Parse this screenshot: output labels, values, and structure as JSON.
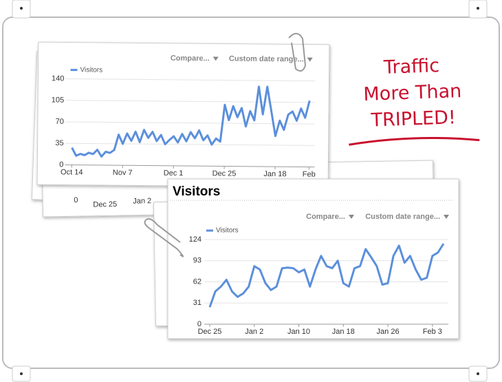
{
  "annotation": [
    "Traffic",
    "More Than",
    "TRIPLED!"
  ],
  "behind_labels": [
    "0",
    "Dec 25",
    "Jan 2"
  ],
  "chart_data": [
    {
      "type": "line",
      "controls": [
        "Compare...",
        "Custom date range..."
      ],
      "legend": "top-left",
      "categories": [
        "Oct 14",
        null,
        null,
        null,
        null,
        null,
        null,
        null,
        null,
        null,
        null,
        null,
        "Nov 7",
        null,
        null,
        null,
        null,
        null,
        null,
        null,
        null,
        null,
        null,
        null,
        "Dec 1",
        null,
        null,
        null,
        null,
        null,
        null,
        null,
        null,
        null,
        null,
        null,
        "Dec 25",
        null,
        null,
        null,
        null,
        null,
        null,
        null,
        null,
        null,
        null,
        null,
        "Jan 18",
        null,
        null,
        null,
        null,
        null,
        null,
        null,
        "Feb"
      ],
      "series": [
        {
          "name": "Visitors",
          "color": "#5b8fdb",
          "values": [
            28,
            15,
            18,
            16,
            20,
            18,
            25,
            14,
            22,
            20,
            25,
            50,
            35,
            52,
            40,
            55,
            38,
            58,
            45,
            55,
            40,
            50,
            35,
            42,
            48,
            38,
            52,
            40,
            55,
            45,
            58,
            42,
            50,
            35,
            45,
            40,
            100,
            75,
            98,
            80,
            95,
            65,
            90,
            75,
            130,
            85,
            130,
            90,
            50,
            75,
            60,
            85,
            90,
            75,
            95,
            80,
            108
          ]
        }
      ],
      "ylim": [
        0,
        140
      ],
      "yticks": [
        0,
        35,
        70,
        105,
        140
      ],
      "grid": true
    },
    {
      "type": "line",
      "title": "Visitors",
      "controls": [
        "Compare...",
        "Custom date range..."
      ],
      "legend": "top-left",
      "categories": [
        "Dec 25",
        null,
        null,
        null,
        null,
        null,
        null,
        null,
        "Jan 2",
        null,
        null,
        null,
        null,
        null,
        null,
        null,
        "Jan 10",
        null,
        null,
        null,
        null,
        null,
        null,
        null,
        "Jan 18",
        null,
        null,
        null,
        null,
        null,
        null,
        null,
        "Jan 26",
        null,
        null,
        null,
        null,
        null,
        null,
        null,
        "Feb 3",
        null,
        null
      ],
      "series": [
        {
          "name": "Visitors",
          "color": "#5b8fdb",
          "values": [
            25,
            48,
            55,
            65,
            48,
            40,
            45,
            55,
            85,
            80,
            60,
            50,
            55,
            82,
            83,
            82,
            76,
            80,
            55,
            80,
            100,
            85,
            82,
            93,
            60,
            55,
            82,
            85,
            110,
            98,
            85,
            58,
            60,
            100,
            115,
            90,
            100,
            80,
            65,
            68,
            100,
            105,
            118
          ]
        }
      ],
      "ylim": [
        0,
        124
      ],
      "yticks": [
        0,
        31,
        62,
        93,
        124
      ],
      "grid": true
    }
  ]
}
